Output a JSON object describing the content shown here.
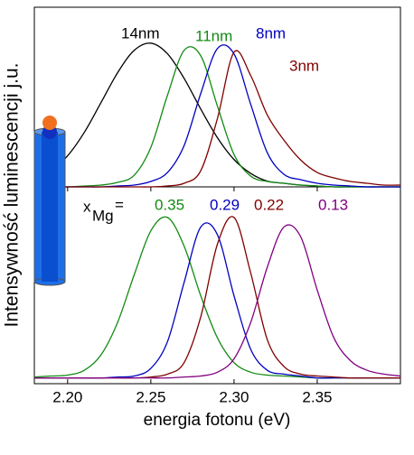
{
  "chart_data": [
    {
      "type": "line",
      "ylabel": "Intensywność luminescencji j.u.",
      "xlim": [
        2.18,
        2.4
      ],
      "ylim": [
        0,
        1
      ],
      "x": [
        2.18,
        2.19,
        2.2,
        2.21,
        2.22,
        2.23,
        2.24,
        2.25,
        2.26,
        2.27,
        2.28,
        2.29,
        2.3,
        2.31,
        2.32,
        2.33,
        2.34,
        2.35,
        2.36,
        2.37,
        2.38,
        2.39,
        2.4
      ],
      "series": [
        {
          "name": "14nm",
          "color": "#000000",
          "values": [
            0.038,
            0.087,
            0.173,
            0.303,
            0.468,
            0.635,
            0.76,
            0.8,
            0.741,
            0.604,
            0.433,
            0.274,
            0.152,
            0.075,
            0.032,
            0.02,
            0.01,
            0.005,
            0,
            0,
            0,
            0,
            0
          ]
        },
        {
          "name": "11nm",
          "color": "#138a13",
          "values": [
            0,
            0,
            0,
            0.005,
            0.01,
            0.025,
            0.065,
            0.22,
            0.51,
            0.76,
            0.73,
            0.45,
            0.18,
            0.06,
            0.03,
            0.02,
            0.01,
            0.005,
            0,
            0,
            0,
            0,
            0
          ]
        },
        {
          "name": "8nm",
          "color": "#0000c0",
          "values": [
            0,
            0,
            0,
            0,
            0,
            0.005,
            0.01,
            0.03,
            0.08,
            0.23,
            0.52,
            0.77,
            0.74,
            0.46,
            0.19,
            0.07,
            0.04,
            0.02,
            0.01,
            0.005,
            0,
            0,
            0
          ]
        },
        {
          "name": "3nm",
          "color": "#800000",
          "values": [
            0,
            0,
            0,
            0,
            0,
            0,
            0,
            0,
            0.005,
            0.02,
            0.09,
            0.38,
            0.75,
            0.62,
            0.4,
            0.26,
            0.15,
            0.08,
            0.05,
            0.03,
            0.02,
            0.01,
            0.01
          ]
        }
      ]
    },
    {
      "type": "line",
      "xlabel": "energia fotonu (eV)",
      "legend_prefix": [
        "x",
        "Mg",
        "="
      ],
      "xlim": [
        2.18,
        2.4
      ],
      "ylim": [
        -0.03,
        1
      ],
      "xticks": [
        {
          "value": 2.2,
          "label": "2.20"
        },
        2.25,
        {
          "value": 2.3,
          "label": "2.30"
        },
        2.35
      ],
      "x": [
        2.18,
        2.19,
        2.2,
        2.21,
        2.22,
        2.23,
        2.24,
        2.25,
        2.26,
        2.27,
        2.28,
        2.29,
        2.3,
        2.31,
        2.32,
        2.33,
        2.34,
        2.35,
        2.36,
        2.37,
        2.38,
        2.39,
        2.4
      ],
      "series": [
        {
          "name": "0.35",
          "color": "#138a13",
          "values": [
            0.005,
            0.01,
            0.015,
            0.04,
            0.12,
            0.29,
            0.54,
            0.77,
            0.84,
            0.69,
            0.43,
            0.21,
            0.08,
            0.03,
            0.015,
            0.01,
            0.005,
            0,
            0,
            0,
            0,
            0,
            0
          ]
        },
        {
          "name": "0.29",
          "color": "#0000c0",
          "values": [
            0,
            0,
            0,
            0,
            0,
            0.005,
            0.01,
            0.05,
            0.19,
            0.5,
            0.79,
            0.75,
            0.43,
            0.15,
            0.04,
            0.02,
            0.01,
            0,
            0,
            0,
            0,
            0,
            0
          ]
        },
        {
          "name": "0.22",
          "color": "#800000",
          "values": [
            0,
            0,
            0,
            0,
            0,
            0,
            0,
            0.005,
            0.02,
            0.08,
            0.32,
            0.7,
            0.84,
            0.55,
            0.2,
            0.06,
            0.02,
            0.01,
            0.005,
            0,
            0,
            0,
            0
          ]
        },
        {
          "name": "0.13",
          "color": "#800080",
          "values": [
            0,
            0,
            0,
            0,
            0,
            0,
            0,
            0,
            0,
            0.005,
            0.01,
            0.03,
            0.1,
            0.29,
            0.58,
            0.79,
            0.74,
            0.46,
            0.21,
            0.09,
            0.04,
            0.02,
            0.01
          ]
        }
      ]
    }
  ]
}
